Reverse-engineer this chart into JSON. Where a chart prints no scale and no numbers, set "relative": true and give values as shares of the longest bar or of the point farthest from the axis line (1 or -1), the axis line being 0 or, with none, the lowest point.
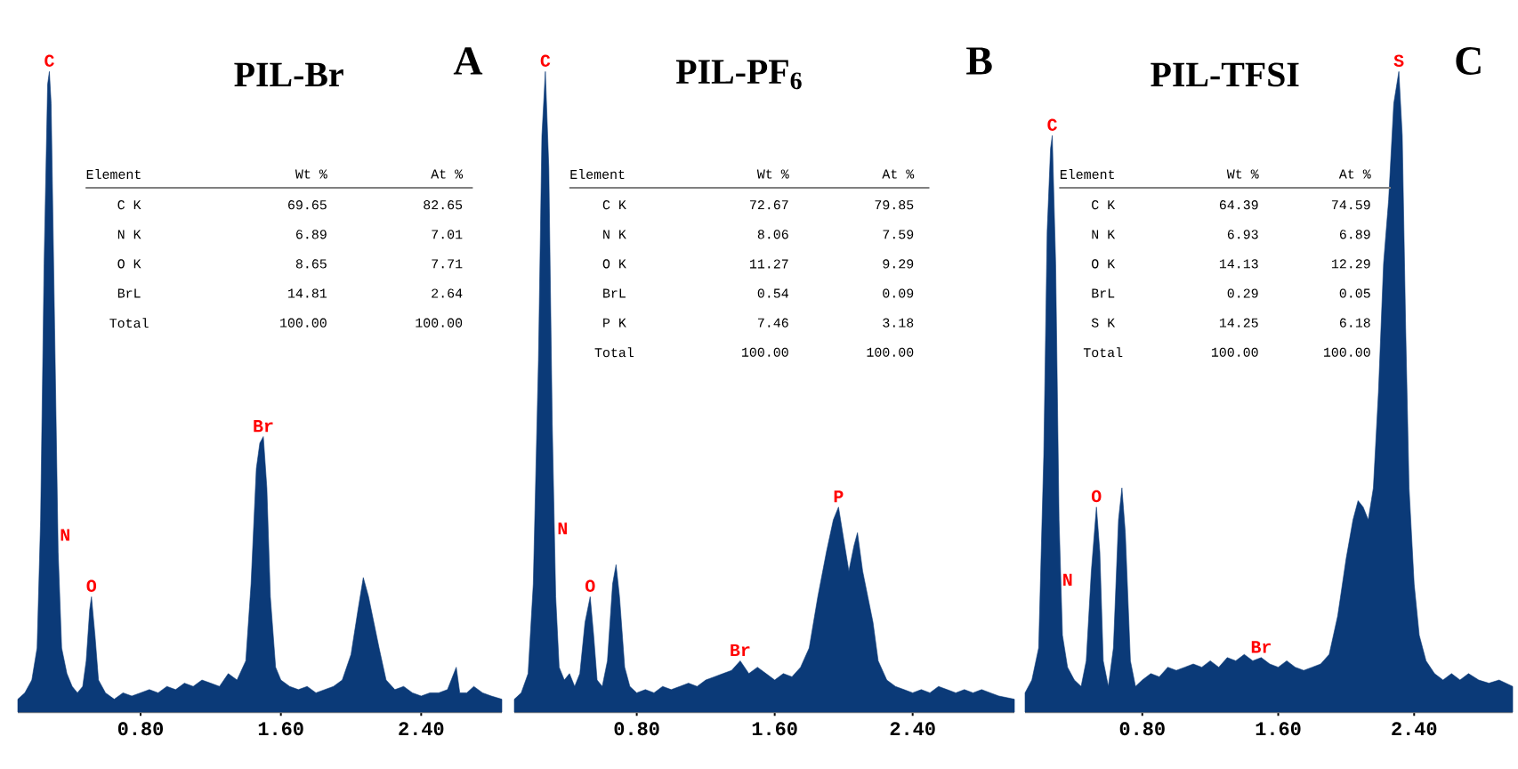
{
  "chart_data": [
    {
      "type": "area",
      "relative": true,
      "title": "PIL-Br",
      "color": "#0b3a78",
      "x": [
        0.1,
        0.14,
        0.18,
        0.21,
        0.23,
        0.25,
        0.27,
        0.28,
        0.29,
        0.31,
        0.33,
        0.35,
        0.38,
        0.41,
        0.44,
        0.47,
        0.49,
        0.51,
        0.52,
        0.54,
        0.56,
        0.6,
        0.65,
        0.7,
        0.75,
        0.8,
        0.85,
        0.9,
        0.95,
        1.0,
        1.05,
        1.1,
        1.15,
        1.2,
        1.25,
        1.3,
        1.35,
        1.4,
        1.43,
        1.46,
        1.48,
        1.5,
        1.52,
        1.54,
        1.57,
        1.6,
        1.65,
        1.7,
        1.75,
        1.8,
        1.85,
        1.9,
        1.95,
        2.0,
        2.04,
        2.07,
        2.1,
        2.13,
        2.16,
        2.2,
        2.25,
        2.3,
        2.35,
        2.4,
        2.45,
        2.5,
        2.55,
        2.6,
        2.62,
        2.66,
        2.7,
        2.75,
        2.8,
        2.86
      ],
      "values": [
        0.02,
        0.03,
        0.05,
        0.1,
        0.3,
        0.7,
        0.98,
        1.0,
        0.95,
        0.6,
        0.25,
        0.1,
        0.06,
        0.04,
        0.03,
        0.04,
        0.08,
        0.16,
        0.18,
        0.12,
        0.05,
        0.03,
        0.02,
        0.03,
        0.025,
        0.03,
        0.035,
        0.03,
        0.04,
        0.035,
        0.045,
        0.04,
        0.05,
        0.045,
        0.04,
        0.06,
        0.05,
        0.08,
        0.2,
        0.38,
        0.42,
        0.43,
        0.35,
        0.18,
        0.07,
        0.05,
        0.04,
        0.035,
        0.04,
        0.03,
        0.035,
        0.04,
        0.05,
        0.09,
        0.16,
        0.21,
        0.18,
        0.14,
        0.1,
        0.05,
        0.035,
        0.04,
        0.03,
        0.025,
        0.03,
        0.03,
        0.035,
        0.07,
        0.03,
        0.03,
        0.04,
        0.03,
        0.025,
        0.02
      ],
      "xlim": [
        0.1,
        2.86
      ],
      "xticks": [
        {
          "value": 0.8,
          "label": "0.80"
        },
        {
          "value": 1.6,
          "label": "1.60"
        },
        {
          "value": 2.4,
          "label": "2.40"
        }
      ],
      "annotations": [
        {
          "text": "C",
          "x": 0.28,
          "y": 1.0
        },
        {
          "text": "O",
          "x": 0.52,
          "y": 0.18
        },
        {
          "text": "N",
          "x": 0.37,
          "y": 0.26
        },
        {
          "text": "Br",
          "x": 1.5,
          "y": 0.43
        },
        "A",
        "Element",
        "Wt %",
        "At %",
        "C K",
        "69.65",
        "82.65",
        "N K",
        "6.89",
        "7.01",
        "O K",
        "8.65",
        "7.71",
        "BrL",
        "14.81",
        "2.64",
        "Total",
        "100.00",
        "100.00"
      ]
    },
    {
      "type": "area",
      "relative": true,
      "title": "PIL-PF$_{6}$",
      "color": "#0b3a78",
      "x": [
        0.09,
        0.13,
        0.17,
        0.2,
        0.23,
        0.25,
        0.27,
        0.29,
        0.31,
        0.33,
        0.35,
        0.38,
        0.41,
        0.44,
        0.47,
        0.5,
        0.53,
        0.55,
        0.57,
        0.6,
        0.63,
        0.66,
        0.68,
        0.7,
        0.73,
        0.76,
        0.8,
        0.85,
        0.9,
        0.95,
        1.0,
        1.05,
        1.1,
        1.15,
        1.2,
        1.25,
        1.3,
        1.35,
        1.4,
        1.45,
        1.5,
        1.55,
        1.6,
        1.65,
        1.7,
        1.75,
        1.8,
        1.85,
        1.9,
        1.94,
        1.97,
        2.0,
        2.03,
        2.06,
        2.08,
        2.11,
        2.14,
        2.17,
        2.2,
        2.25,
        2.3,
        2.35,
        2.4,
        2.45,
        2.5,
        2.55,
        2.6,
        2.65,
        2.7,
        2.75,
        2.8,
        2.85,
        2.9,
        2.99
      ],
      "values": [
        0.02,
        0.03,
        0.06,
        0.2,
        0.55,
        0.9,
        1.0,
        0.85,
        0.45,
        0.18,
        0.07,
        0.05,
        0.06,
        0.04,
        0.06,
        0.14,
        0.18,
        0.12,
        0.05,
        0.04,
        0.08,
        0.2,
        0.23,
        0.18,
        0.07,
        0.04,
        0.03,
        0.035,
        0.03,
        0.04,
        0.035,
        0.04,
        0.045,
        0.04,
        0.05,
        0.055,
        0.06,
        0.065,
        0.08,
        0.06,
        0.07,
        0.06,
        0.05,
        0.06,
        0.055,
        0.07,
        0.1,
        0.18,
        0.25,
        0.3,
        0.32,
        0.27,
        0.22,
        0.26,
        0.28,
        0.22,
        0.18,
        0.14,
        0.08,
        0.05,
        0.04,
        0.035,
        0.03,
        0.035,
        0.03,
        0.04,
        0.035,
        0.03,
        0.035,
        0.03,
        0.035,
        0.03,
        0.025,
        0.02
      ],
      "xlim": [
        0.09,
        2.99
      ],
      "xticks": [
        {
          "value": 0.8,
          "label": "0.80"
        },
        {
          "value": 1.6,
          "label": "1.60"
        },
        {
          "value": 2.4,
          "label": "2.40"
        }
      ],
      "annotations": [
        {
          "text": "C",
          "x": 0.27,
          "y": 1.0
        },
        {
          "text": "O",
          "x": 0.53,
          "y": 0.18
        },
        {
          "text": "N",
          "x": 0.37,
          "y": 0.27
        },
        {
          "text": "Br",
          "x": 1.4,
          "y": 0.08
        },
        {
          "text": "P",
          "x": 1.97,
          "y": 0.32
        },
        "B",
        "Element",
        "Wt %",
        "At %",
        "C K",
        "72.67",
        "79.85",
        "N K",
        "8.06",
        "7.59",
        "O K",
        "11.27",
        "9.29",
        "BrL",
        "0.54",
        "0.09",
        "P K",
        "7.46",
        "3.18",
        "Total",
        "100.00",
        "100.00"
      ]
    },
    {
      "type": "area",
      "relative": true,
      "title": "PIL-TFSI",
      "color": "#0b3a78",
      "x": [
        0.11,
        0.15,
        0.19,
        0.22,
        0.24,
        0.26,
        0.27,
        0.29,
        0.31,
        0.33,
        0.36,
        0.4,
        0.44,
        0.47,
        0.5,
        0.53,
        0.55,
        0.57,
        0.6,
        0.63,
        0.66,
        0.68,
        0.7,
        0.73,
        0.76,
        0.8,
        0.85,
        0.9,
        0.95,
        1.0,
        1.05,
        1.1,
        1.15,
        1.2,
        1.25,
        1.3,
        1.35,
        1.4,
        1.45,
        1.5,
        1.55,
        1.6,
        1.65,
        1.7,
        1.75,
        1.8,
        1.85,
        1.9,
        1.95,
        2.0,
        2.04,
        2.07,
        2.1,
        2.13,
        2.16,
        2.19,
        2.22,
        2.25,
        2.28,
        2.31,
        2.33,
        2.35,
        2.37,
        2.4,
        2.43,
        2.47,
        2.52,
        2.57,
        2.62,
        2.67,
        2.72,
        2.78,
        2.84,
        2.9,
        2.98
      ],
      "values": [
        0.03,
        0.05,
        0.1,
        0.4,
        0.75,
        0.88,
        0.9,
        0.7,
        0.3,
        0.12,
        0.07,
        0.05,
        0.04,
        0.08,
        0.22,
        0.32,
        0.25,
        0.08,
        0.04,
        0.1,
        0.3,
        0.35,
        0.28,
        0.08,
        0.04,
        0.05,
        0.06,
        0.055,
        0.07,
        0.065,
        0.07,
        0.075,
        0.07,
        0.08,
        0.07,
        0.085,
        0.08,
        0.09,
        0.08,
        0.085,
        0.075,
        0.07,
        0.08,
        0.07,
        0.065,
        0.07,
        0.075,
        0.09,
        0.15,
        0.24,
        0.3,
        0.33,
        0.32,
        0.3,
        0.35,
        0.5,
        0.7,
        0.8,
        0.95,
        1.0,
        0.9,
        0.6,
        0.35,
        0.2,
        0.12,
        0.08,
        0.06,
        0.05,
        0.06,
        0.05,
        0.06,
        0.05,
        0.045,
        0.05,
        0.04
      ],
      "xlim": [
        0.11,
        2.98
      ],
      "xticks": [
        {
          "value": 0.8,
          "label": "0.80"
        },
        {
          "value": 1.6,
          "label": "1.60"
        },
        {
          "value": 2.4,
          "label": "2.40"
        }
      ],
      "annotations": [
        {
          "text": "C",
          "x": 0.27,
          "y": 0.9
        },
        {
          "text": "S",
          "x": 2.31,
          "y": 1.0
        },
        {
          "text": "O",
          "x": 0.53,
          "y": 0.32
        },
        {
          "text": "N",
          "x": 0.36,
          "y": 0.19
        },
        {
          "text": "Br",
          "x": 1.5,
          "y": 0.085
        },
        "C",
        "Element",
        "Wt %",
        "At %",
        "C K",
        "64.39",
        "74.59",
        "N K",
        "6.93",
        "6.89",
        "O K",
        "14.13",
        "12.29",
        "BrL",
        "0.29",
        "0.05",
        "S K",
        "14.25",
        "6.18",
        "Total",
        "100.00",
        "100.00"
      ]
    }
  ]
}
